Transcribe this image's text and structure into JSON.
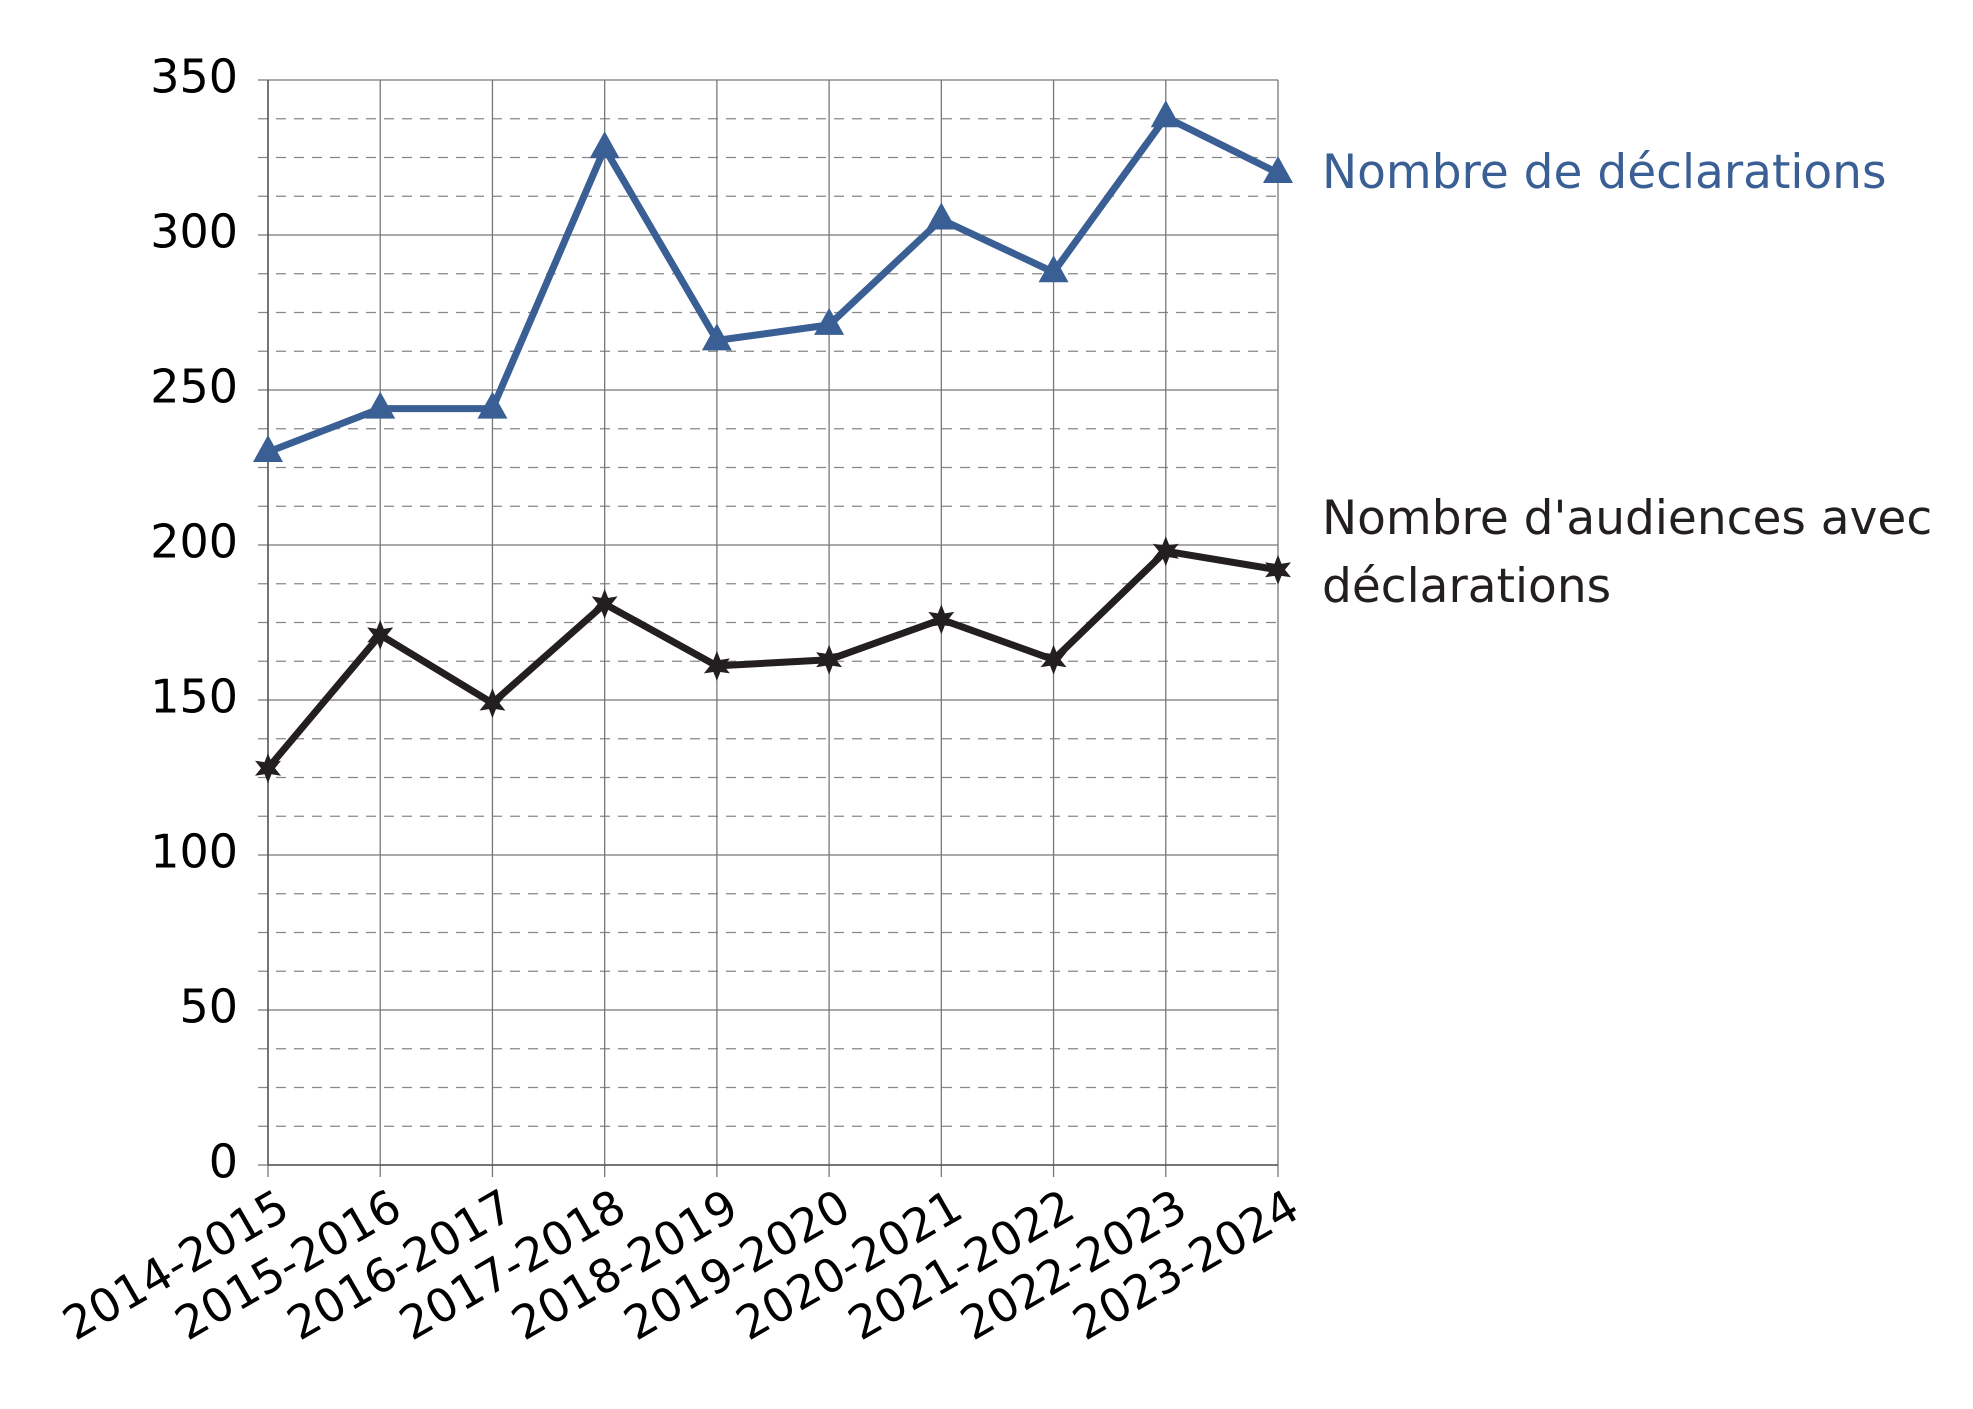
{
  "chart_data": {
    "type": "line",
    "categories": [
      "2014-2015",
      "2015-2016",
      "2016-2017",
      "2017-2018",
      "2018-2019",
      "2019-2020",
      "2020-2021",
      "2021-2022",
      "2022-2023",
      "2023-2024"
    ],
    "series": [
      {
        "name": "Nombre de déclarations",
        "color": "#3a5f94",
        "marker": "triangle",
        "values": [
          230,
          244,
          244,
          328,
          266,
          271,
          305,
          288,
          338,
          320
        ]
      },
      {
        "name": "Nombre d'audiences avec déclarations",
        "color": "#231f20",
        "marker": "star",
        "values": [
          128,
          171,
          149,
          181,
          161,
          163,
          176,
          163,
          198,
          192
        ]
      }
    ],
    "ylim": [
      0,
      350
    ],
    "yticks": [
      0,
      50,
      100,
      150,
      200,
      250,
      300,
      350
    ],
    "grid": true
  }
}
